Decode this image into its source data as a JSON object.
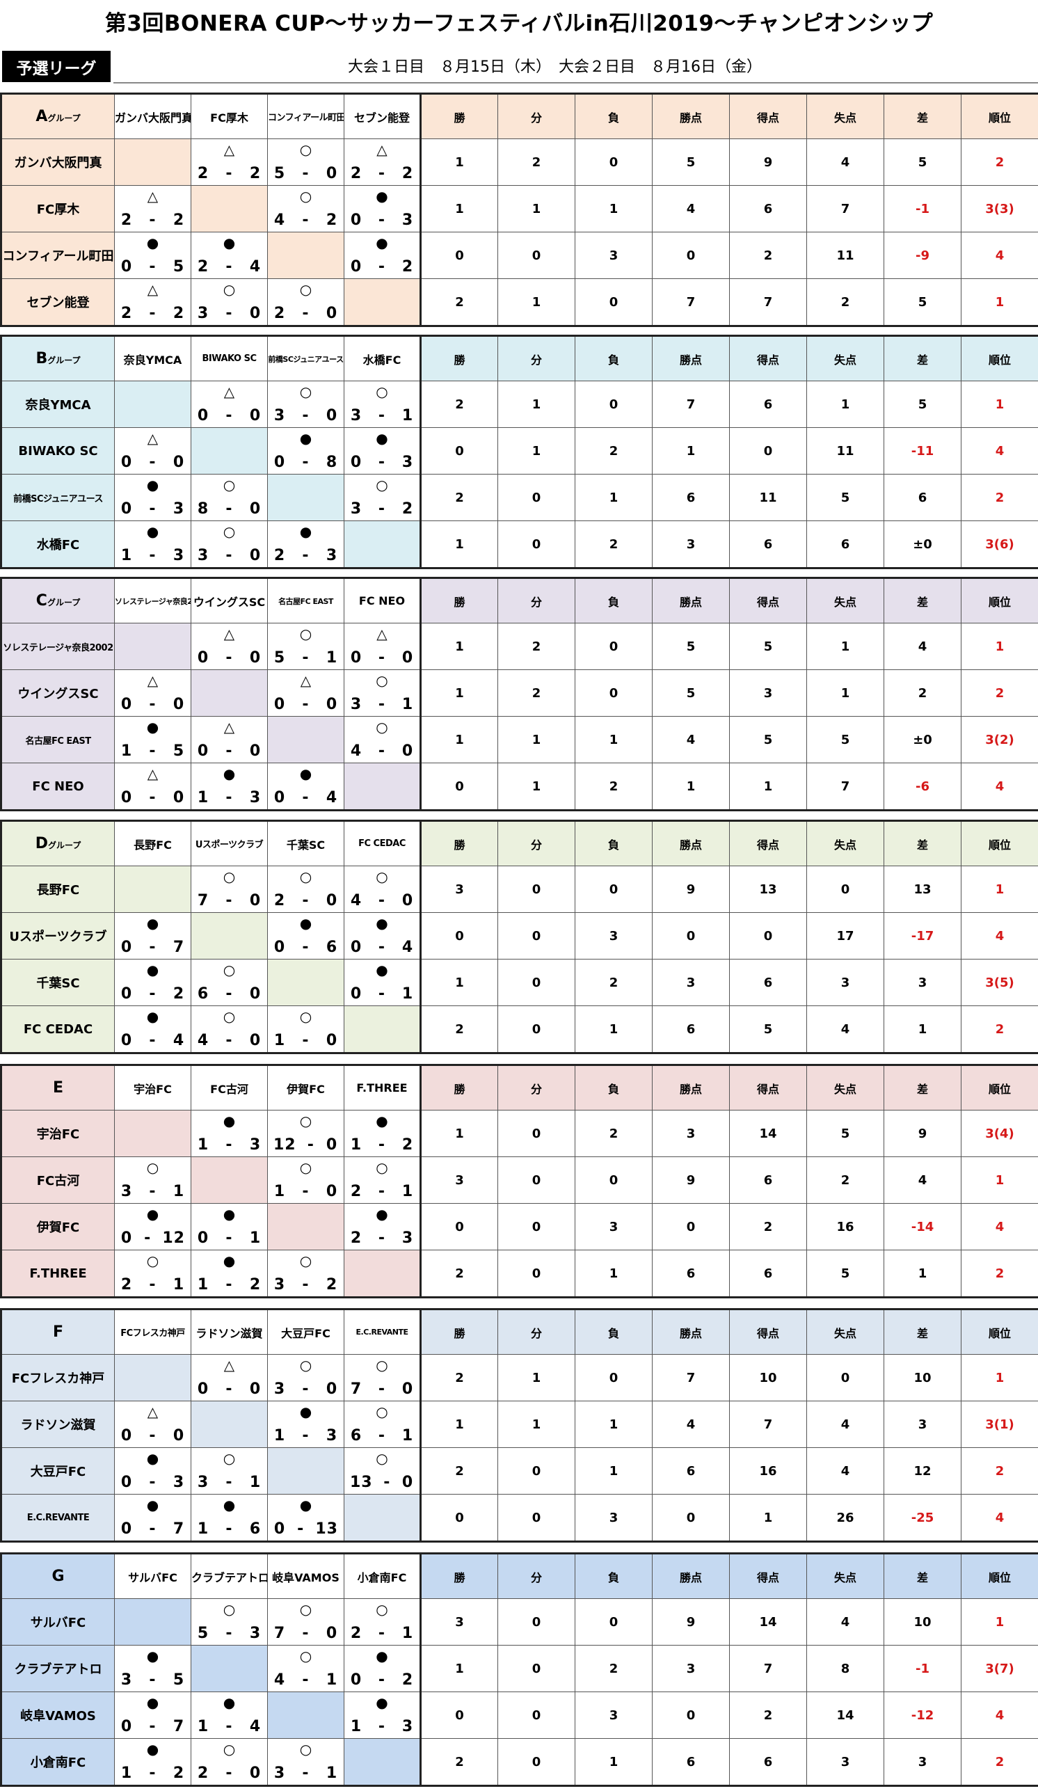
{
  "title": "第3回BONERA CUP～サッカーフェスティバルin石川2019～チャンピオンシップ",
  "league_label": "予選リーグ",
  "dates": "大会１日目　８月15日（木）　大会２日目　８月16日（金）",
  "stat_headers": [
    "勝",
    "分",
    "負",
    "勝点",
    "得点",
    "失点",
    "差",
    "順位"
  ],
  "colors": {
    "title": "#000000",
    "rank": "#d61818",
    "negative_diff": "#d61818"
  },
  "groups": [
    {
      "letter": "A",
      "suffix": "グループ",
      "color": "#fbe6d6",
      "teams": [
        "ガンバ大阪門真",
        "FC厚木",
        "コンフィアール町田",
        "セブン能登"
      ],
      "header_names": [
        "ガンバ大阪門真",
        "FC厚木",
        "コンフィアール町田",
        "セブン能登"
      ],
      "results": [
        [
          null,
          [
            "△",
            "2",
            "2"
          ],
          [
            "○",
            "5",
            "0"
          ],
          [
            "△",
            "2",
            "2"
          ]
        ],
        [
          [
            "△",
            "2",
            "2"
          ],
          null,
          [
            "○",
            "4",
            "2"
          ],
          [
            "●",
            "0",
            "3"
          ]
        ],
        [
          [
            "●",
            "0",
            "5"
          ],
          [
            "●",
            "2",
            "4"
          ],
          null,
          [
            "●",
            "0",
            "2"
          ]
        ],
        [
          [
            "△",
            "2",
            "2"
          ],
          [
            "○",
            "3",
            "0"
          ],
          [
            "○",
            "2",
            "0"
          ],
          null
        ]
      ],
      "stats": [
        [
          "1",
          "2",
          "0",
          "5",
          "9",
          "4",
          "5",
          "2"
        ],
        [
          "1",
          "1",
          "1",
          "4",
          "6",
          "7",
          "-1",
          "3(3)"
        ],
        [
          "0",
          "0",
          "3",
          "0",
          "2",
          "11",
          "-9",
          "4"
        ],
        [
          "2",
          "1",
          "0",
          "7",
          "7",
          "2",
          "5",
          "1"
        ]
      ]
    },
    {
      "letter": "B",
      "suffix": "グループ",
      "color": "#daeef3",
      "teams": [
        "奈良YMCA",
        "BIWAKO SC",
        "前橋SCジュニアユース",
        "水橋FC"
      ],
      "header_names": [
        "奈良YMCA",
        "BIWAKO SC",
        "前橋SCジュニアユース",
        "水橋FC"
      ],
      "results": [
        [
          null,
          [
            "△",
            "0",
            "0"
          ],
          [
            "○",
            "3",
            "0"
          ],
          [
            "○",
            "3",
            "1"
          ]
        ],
        [
          [
            "△",
            "0",
            "0"
          ],
          null,
          [
            "●",
            "0",
            "8"
          ],
          [
            "●",
            "0",
            "3"
          ]
        ],
        [
          [
            "●",
            "0",
            "3"
          ],
          [
            "○",
            "8",
            "0"
          ],
          null,
          [
            "○",
            "3",
            "2"
          ]
        ],
        [
          [
            "●",
            "1",
            "3"
          ],
          [
            "○",
            "3",
            "0"
          ],
          [
            "●",
            "2",
            "3"
          ],
          null
        ]
      ],
      "stats": [
        [
          "2",
          "1",
          "0",
          "7",
          "6",
          "1",
          "5",
          "1"
        ],
        [
          "0",
          "1",
          "2",
          "1",
          "0",
          "11",
          "-11",
          "4"
        ],
        [
          "2",
          "0",
          "1",
          "6",
          "11",
          "5",
          "6",
          "2"
        ],
        [
          "1",
          "0",
          "2",
          "3",
          "6",
          "6",
          "±0",
          "3(6)"
        ]
      ]
    },
    {
      "letter": "C",
      "suffix": "グループ",
      "color": "#e5e0ec",
      "teams": [
        "ソレステレージャ奈良2002",
        "ウイングスSC",
        "名古屋FC EAST",
        "FC NEO"
      ],
      "header_names": [
        "ソレステレージャ奈良2002",
        "ウイングスSC",
        "名古屋FC EAST",
        "FC NEO"
      ],
      "results": [
        [
          null,
          [
            "△",
            "0",
            "0"
          ],
          [
            "○",
            "5",
            "1"
          ],
          [
            "△",
            "0",
            "0"
          ]
        ],
        [
          [
            "△",
            "0",
            "0"
          ],
          null,
          [
            "△",
            "0",
            "0"
          ],
          [
            "○",
            "3",
            "1"
          ]
        ],
        [
          [
            "●",
            "1",
            "5"
          ],
          [
            "△",
            "0",
            "0"
          ],
          null,
          [
            "○",
            "4",
            "0"
          ]
        ],
        [
          [
            "△",
            "0",
            "0"
          ],
          [
            "●",
            "1",
            "3"
          ],
          [
            "●",
            "0",
            "4"
          ],
          null
        ]
      ],
      "stats": [
        [
          "1",
          "2",
          "0",
          "5",
          "5",
          "1",
          "4",
          "1"
        ],
        [
          "1",
          "2",
          "0",
          "5",
          "3",
          "1",
          "2",
          "2"
        ],
        [
          "1",
          "1",
          "1",
          "4",
          "5",
          "5",
          "±0",
          "3(2)"
        ],
        [
          "0",
          "1",
          "2",
          "1",
          "1",
          "7",
          "-6",
          "4"
        ]
      ]
    },
    {
      "letter": "D",
      "suffix": "グループ",
      "color": "#ebf1de",
      "teams": [
        "長野FC",
        "Uスポーツクラブ",
        "千葉SC",
        "FC CEDAC"
      ],
      "header_names": [
        "長野FC",
        "Uスポーツクラブ",
        "千葉SC",
        "FC CEDAC"
      ],
      "results": [
        [
          null,
          [
            "○",
            "7",
            "0"
          ],
          [
            "○",
            "2",
            "0"
          ],
          [
            "○",
            "4",
            "0"
          ]
        ],
        [
          [
            "●",
            "0",
            "7"
          ],
          null,
          [
            "●",
            "0",
            "6"
          ],
          [
            "●",
            "0",
            "4"
          ]
        ],
        [
          [
            "●",
            "0",
            "2"
          ],
          [
            "○",
            "6",
            "0"
          ],
          null,
          [
            "●",
            "0",
            "1"
          ]
        ],
        [
          [
            "●",
            "0",
            "4"
          ],
          [
            "○",
            "4",
            "0"
          ],
          [
            "○",
            "1",
            "0"
          ],
          null
        ]
      ],
      "stats": [
        [
          "3",
          "0",
          "0",
          "9",
          "13",
          "0",
          "13",
          "1"
        ],
        [
          "0",
          "0",
          "3",
          "0",
          "0",
          "17",
          "-17",
          "4"
        ],
        [
          "1",
          "0",
          "2",
          "3",
          "6",
          "3",
          "3",
          "3(5)"
        ],
        [
          "2",
          "0",
          "1",
          "6",
          "5",
          "4",
          "1",
          "2"
        ]
      ]
    },
    {
      "letter": "E",
      "suffix": "",
      "color": "#f2dcdb",
      "teams": [
        "宇治FC",
        "FC古河",
        "伊賀FC",
        "F.THREE"
      ],
      "header_names": [
        "宇治FC",
        "FC古河",
        "伊賀FC",
        "F.THREE"
      ],
      "results": [
        [
          null,
          [
            "●",
            "1",
            "3"
          ],
          [
            "○",
            "12",
            "0"
          ],
          [
            "●",
            "1",
            "2"
          ]
        ],
        [
          [
            "○",
            "3",
            "1"
          ],
          null,
          [
            "○",
            "1",
            "0"
          ],
          [
            "○",
            "2",
            "1"
          ]
        ],
        [
          [
            "●",
            "0",
            "12"
          ],
          [
            "●",
            "0",
            "1"
          ],
          null,
          [
            "●",
            "2",
            "3"
          ]
        ],
        [
          [
            "○",
            "2",
            "1"
          ],
          [
            "●",
            "1",
            "2"
          ],
          [
            "○",
            "3",
            "2"
          ],
          null
        ]
      ],
      "stats": [
        [
          "1",
          "0",
          "2",
          "3",
          "14",
          "5",
          "9",
          "3(4)"
        ],
        [
          "3",
          "0",
          "0",
          "9",
          "6",
          "2",
          "4",
          "1"
        ],
        [
          "0",
          "0",
          "3",
          "0",
          "2",
          "16",
          "-14",
          "4"
        ],
        [
          "2",
          "0",
          "1",
          "6",
          "6",
          "5",
          "1",
          "2"
        ]
      ]
    },
    {
      "letter": "F",
      "suffix": "",
      "color": "#dce6f1",
      "teams": [
        "FCフレスカ神戸",
        "ラドソン滋賀",
        "大豆戸FC",
        "E.C.REVANTE"
      ],
      "header_names": [
        "FCフレスカ神戸",
        "ラドソン滋賀",
        "大豆戸FC",
        "E.C.REVANTE"
      ],
      "results": [
        [
          null,
          [
            "△",
            "0",
            "0"
          ],
          [
            "○",
            "3",
            "0"
          ],
          [
            "○",
            "7",
            "0"
          ]
        ],
        [
          [
            "△",
            "0",
            "0"
          ],
          null,
          [
            "●",
            "1",
            "3"
          ],
          [
            "○",
            "6",
            "1"
          ]
        ],
        [
          [
            "●",
            "0",
            "3"
          ],
          [
            "○",
            "3",
            "1"
          ],
          null,
          [
            "○",
            "13",
            "0"
          ]
        ],
        [
          [
            "●",
            "0",
            "7"
          ],
          [
            "●",
            "1",
            "6"
          ],
          [
            "●",
            "0",
            "13"
          ],
          null
        ]
      ],
      "stats": [
        [
          "2",
          "1",
          "0",
          "7",
          "10",
          "0",
          "10",
          "1"
        ],
        [
          "1",
          "1",
          "1",
          "4",
          "7",
          "4",
          "3",
          "3(1)"
        ],
        [
          "2",
          "0",
          "1",
          "6",
          "16",
          "4",
          "12",
          "2"
        ],
        [
          "0",
          "0",
          "3",
          "0",
          "1",
          "26",
          "-25",
          "4"
        ]
      ]
    },
    {
      "letter": "G",
      "suffix": "",
      "color": "#c5d9f1",
      "teams": [
        "サルバFC",
        "クラブテアトロ",
        "岐阜VAMOS",
        "小倉南FC"
      ],
      "header_names": [
        "サルバFC",
        "クラブテアトロ",
        "岐阜VAMOS",
        "小倉南FC"
      ],
      "results": [
        [
          null,
          [
            "○",
            "5",
            "3"
          ],
          [
            "○",
            "7",
            "0"
          ],
          [
            "○",
            "2",
            "1"
          ]
        ],
        [
          [
            "●",
            "3",
            "5"
          ],
          null,
          [
            "○",
            "4",
            "1"
          ],
          [
            "●",
            "0",
            "2"
          ]
        ],
        [
          [
            "●",
            "0",
            "7"
          ],
          [
            "●",
            "1",
            "4"
          ],
          null,
          [
            "●",
            "1",
            "3"
          ]
        ],
        [
          [
            "●",
            "1",
            "2"
          ],
          [
            "○",
            "2",
            "0"
          ],
          [
            "○",
            "3",
            "1"
          ],
          null
        ]
      ],
      "stats": [
        [
          "3",
          "0",
          "0",
          "9",
          "14",
          "4",
          "10",
          "1"
        ],
        [
          "1",
          "0",
          "2",
          "3",
          "7",
          "8",
          "-1",
          "3(7)"
        ],
        [
          "0",
          "0",
          "3",
          "0",
          "2",
          "14",
          "-12",
          "4"
        ],
        [
          "2",
          "0",
          "1",
          "6",
          "6",
          "3",
          "3",
          "2"
        ]
      ]
    }
  ]
}
